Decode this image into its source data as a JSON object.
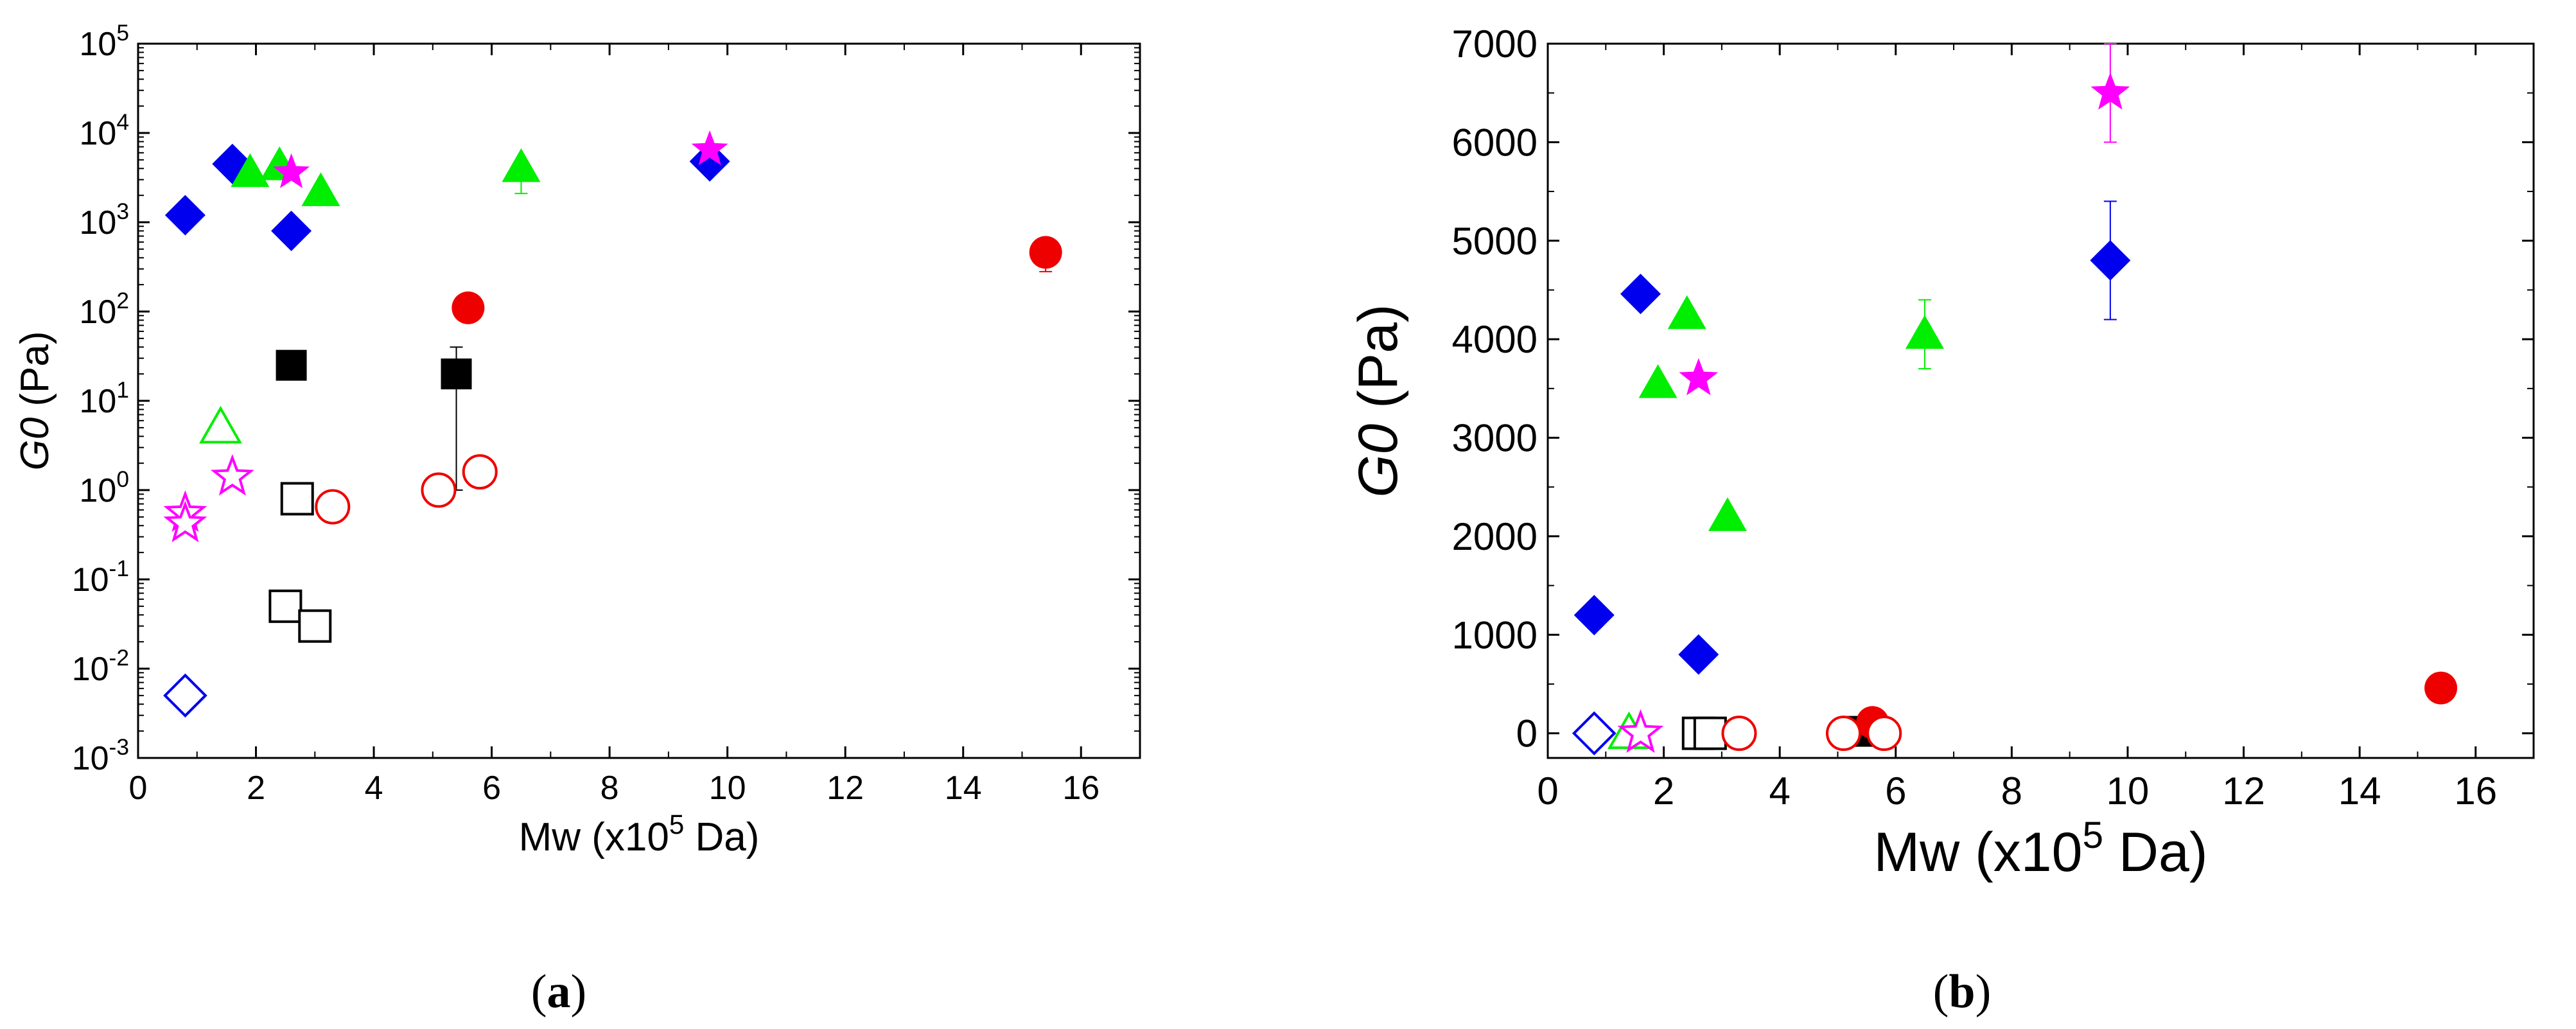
{
  "chart_data": [
    {
      "type": "scatter",
      "panel_label": "a",
      "xlabel": {
        "pre": "Mw (x10",
        "sup": "5",
        "post": " Da)"
      },
      "ylabel": {
        "italic": "G0",
        "rest": " (Pa)"
      },
      "xlim": [
        0,
        17
      ],
      "xticks": [
        0,
        2,
        4,
        6,
        8,
        10,
        12,
        14,
        16
      ],
      "yscale": "log",
      "ylim": [
        0.001,
        100000
      ],
      "yticks": [
        {
          "value": 0.001,
          "base": "10",
          "exp": "-3"
        },
        {
          "value": 0.01,
          "base": "10",
          "exp": "-2"
        },
        {
          "value": 0.1,
          "base": "10",
          "exp": "-1"
        },
        {
          "value": 1,
          "base": "10",
          "exp": "0"
        },
        {
          "value": 10,
          "base": "10",
          "exp": "1"
        },
        {
          "value": 100,
          "base": "10",
          "exp": "2"
        },
        {
          "value": 1000,
          "base": "10",
          "exp": "3"
        },
        {
          "value": 10000,
          "base": "10",
          "exp": "4"
        },
        {
          "value": 100000,
          "base": "10",
          "exp": "5"
        }
      ],
      "grid": false,
      "series": [
        {
          "marker": "diamond",
          "filled": true,
          "color": "#0000ee",
          "points": [
            {
              "x": 0.8,
              "y": 1200
            },
            {
              "x": 1.6,
              "y": 4500
            },
            {
              "x": 2.6,
              "y": 800
            },
            {
              "x": 9.7,
              "y": 4800
            }
          ]
        },
        {
          "marker": "diamond",
          "filled": false,
          "color": "#0000ee",
          "points": [
            {
              "x": 0.8,
              "y": 0.005
            }
          ]
        },
        {
          "marker": "triangle",
          "filled": true,
          "color": "#00ee00",
          "points": [
            {
              "x": 1.9,
              "y": 3600
            },
            {
              "x": 2.4,
              "y": 4300
            },
            {
              "x": 3.1,
              "y": 2200
            },
            {
              "x": 6.5,
              "y": 4100,
              "err_low": 2000,
              "err_high": 300
            }
          ]
        },
        {
          "marker": "triangle",
          "filled": false,
          "color": "#00ee00",
          "points": [
            {
              "x": 1.4,
              "y": 5
            }
          ]
        },
        {
          "marker": "star",
          "filled": true,
          "color": "#ff00ff",
          "points": [
            {
              "x": 2.6,
              "y": 3600
            },
            {
              "x": 9.7,
              "y": 6500
            }
          ]
        },
        {
          "marker": "star",
          "filled": false,
          "color": "#ff00ff",
          "points": [
            {
              "x": 0.8,
              "y": 0.55
            },
            {
              "x": 0.8,
              "y": 0.42
            },
            {
              "x": 1.6,
              "y": 1.4
            }
          ]
        },
        {
          "marker": "square",
          "filled": true,
          "color": "#000000",
          "points": [
            {
              "x": 2.6,
              "y": 25
            },
            {
              "x": 5.4,
              "y": 20,
              "err_low": 19,
              "err_high": 20
            }
          ]
        },
        {
          "marker": "square",
          "filled": false,
          "color": "#000000",
          "points": [
            {
              "x": 2.5,
              "y": 0.05
            },
            {
              "x": 2.7,
              "y": 0.8
            },
            {
              "x": 3.0,
              "y": 0.03
            }
          ]
        },
        {
          "marker": "circle",
          "filled": true,
          "color": "#ee0000",
          "points": [
            {
              "x": 5.6,
              "y": 110
            },
            {
              "x": 15.4,
              "y": 460,
              "err_low": 180,
              "err_high": 80
            }
          ]
        },
        {
          "marker": "circle",
          "filled": false,
          "color": "#ee0000",
          "points": [
            {
              "x": 3.3,
              "y": 0.65
            },
            {
              "x": 5.1,
              "y": 1.0
            },
            {
              "x": 5.8,
              "y": 1.6
            }
          ]
        }
      ]
    },
    {
      "type": "scatter",
      "panel_label": "b",
      "xlabel": {
        "pre": "Mw (x10",
        "sup": "5",
        "post": " Da)"
      },
      "ylabel": {
        "italic": "G0",
        "rest": " (Pa)"
      },
      "xlim": [
        0,
        17
      ],
      "xticks": [
        0,
        2,
        4,
        6,
        8,
        10,
        12,
        14,
        16
      ],
      "yscale": "linear",
      "ylim": [
        -250,
        7000
      ],
      "yticks": [
        0,
        1000,
        2000,
        3000,
        4000,
        5000,
        6000,
        7000
      ],
      "grid": false,
      "series": [
        {
          "marker": "diamond",
          "filled": true,
          "color": "#0000ee",
          "points": [
            {
              "x": 0.8,
              "y": 1200
            },
            {
              "x": 1.6,
              "y": 4460
            },
            {
              "x": 2.6,
              "y": 800
            },
            {
              "x": 9.7,
              "y": 4800,
              "err_low": 600,
              "err_high": 600
            }
          ]
        },
        {
          "marker": "diamond",
          "filled": false,
          "color": "#0000ee",
          "points": [
            {
              "x": 0.8,
              "y": 0
            }
          ]
        },
        {
          "marker": "triangle",
          "filled": true,
          "color": "#00ee00",
          "points": [
            {
              "x": 1.9,
              "y": 3550
            },
            {
              "x": 2.4,
              "y": 4250
            },
            {
              "x": 3.1,
              "y": 2200
            },
            {
              "x": 6.5,
              "y": 4050,
              "err_low": 350,
              "err_high": 350
            }
          ]
        },
        {
          "marker": "triangle",
          "filled": false,
          "color": "#00ee00",
          "points": [
            {
              "x": 1.4,
              "y": 0
            }
          ]
        },
        {
          "marker": "star",
          "filled": true,
          "color": "#ff00ff",
          "points": [
            {
              "x": 2.6,
              "y": 3600
            },
            {
              "x": 9.7,
              "y": 6500,
              "err_low": 500,
              "err_high": 500
            }
          ]
        },
        {
          "marker": "star",
          "filled": false,
          "color": "#ff00ff",
          "points": [
            {
              "x": 1.6,
              "y": 0
            }
          ]
        },
        {
          "marker": "square",
          "filled": true,
          "color": "#000000",
          "points": [
            {
              "x": 5.4,
              "y": 20
            }
          ]
        },
        {
          "marker": "square",
          "filled": false,
          "color": "#000000",
          "points": [
            {
              "x": 2.6,
              "y": 0
            },
            {
              "x": 2.8,
              "y": 0
            }
          ]
        },
        {
          "marker": "circle",
          "filled": true,
          "color": "#ee0000",
          "points": [
            {
              "x": 5.6,
              "y": 110
            },
            {
              "x": 15.4,
              "y": 460,
              "err_low": 150,
              "err_high": 150
            }
          ]
        },
        {
          "marker": "circle",
          "filled": false,
          "color": "#ee0000",
          "points": [
            {
              "x": 3.3,
              "y": 0
            },
            {
              "x": 5.1,
              "y": 0
            },
            {
              "x": 5.8,
              "y": 0
            }
          ]
        }
      ]
    }
  ]
}
